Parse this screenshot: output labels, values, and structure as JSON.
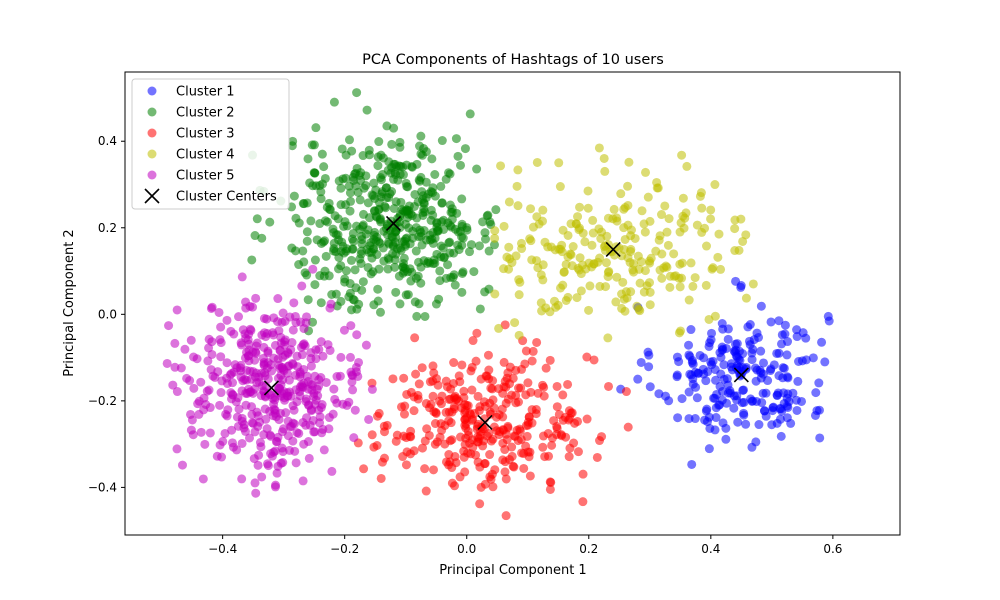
{
  "chart_data": {
    "type": "scatter",
    "title": "PCA Components of Hashtags of 10 users",
    "xlabel": "Principal Component 1",
    "ylabel": "Principal Component 2",
    "xlim": [
      -0.56,
      0.71
    ],
    "ylim": [
      -0.51,
      0.56
    ],
    "xticks": [
      -0.4,
      -0.2,
      0.0,
      0.2,
      0.4,
      0.6
    ],
    "xtick_labels": [
      "−0.4",
      "−0.2",
      "0.0",
      "0.2",
      "0.4",
      "0.6"
    ],
    "yticks": [
      -0.4,
      -0.2,
      0.0,
      0.2,
      0.4
    ],
    "ytick_labels": [
      "−0.4",
      "−0.2",
      "0.0",
      "0.2",
      "0.4"
    ],
    "grid": false,
    "legend_position": "upper-left",
    "series": [
      {
        "name": "Cluster 1",
        "color": "#0000ff",
        "center": [
          0.45,
          -0.14
        ],
        "spread": [
          0.07,
          0.08
        ],
        "xlim": [
          0.24,
          0.66
        ],
        "ylim": [
          -0.35,
          0.08
        ],
        "count": 230
      },
      {
        "name": "Cluster 2",
        "color": "#008000",
        "center": [
          -0.12,
          0.21
        ],
        "spread": [
          0.09,
          0.1
        ],
        "xlim": [
          -0.36,
          0.06
        ],
        "ylim": [
          -0.04,
          0.53
        ],
        "count": 480
      },
      {
        "name": "Cluster 3",
        "color": "#ff0000",
        "center": [
          0.03,
          -0.25
        ],
        "spread": [
          0.09,
          0.08
        ],
        "xlim": [
          -0.23,
          0.27
        ],
        "ylim": [
          -0.47,
          -0.01
        ],
        "count": 330
      },
      {
        "name": "Cluster 4",
        "color": "#bfbf00",
        "center": [
          0.24,
          0.15
        ],
        "spread": [
          0.11,
          0.09
        ],
        "xlim": [
          0.04,
          0.52
        ],
        "ylim": [
          -0.06,
          0.41
        ],
        "count": 250
      },
      {
        "name": "Cluster 5",
        "color": "#bf00bf",
        "center": [
          -0.32,
          -0.17
        ],
        "spread": [
          0.08,
          0.1
        ],
        "xlim": [
          -0.5,
          -0.15
        ],
        "ylim": [
          -0.42,
          0.11
        ],
        "count": 420
      }
    ],
    "centers": {
      "name": "Cluster Centers",
      "marker": "x",
      "color": "#000000",
      "points": [
        [
          0.45,
          -0.14
        ],
        [
          -0.12,
          0.21
        ],
        [
          0.03,
          -0.25
        ],
        [
          0.24,
          0.15
        ],
        [
          -0.32,
          -0.17
        ]
      ]
    }
  }
}
